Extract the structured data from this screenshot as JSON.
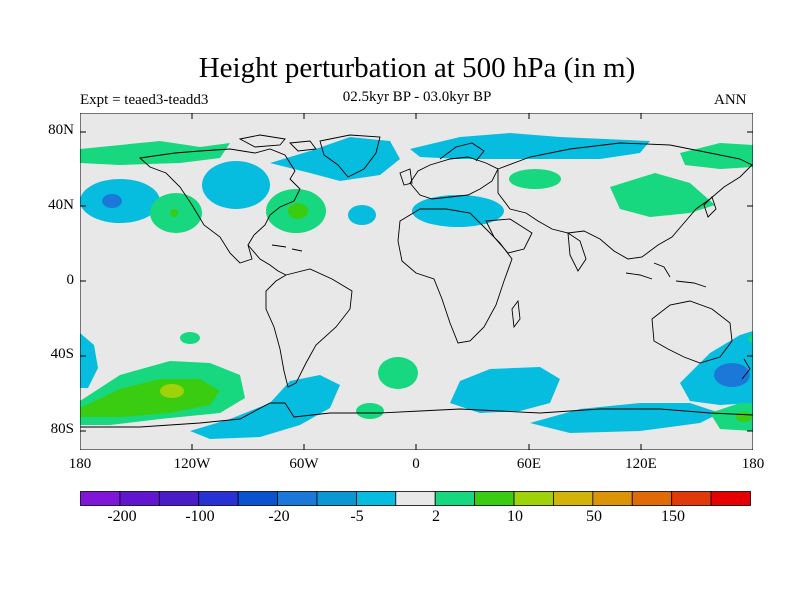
{
  "header": {
    "title": "Height perturbation at 500 hPa (in m)",
    "subtitle": "02.5kyr BP - 03.0kyr BP",
    "left_label": "Expt = teaed3-teadd3",
    "right_label": "ANN"
  },
  "axes": {
    "lat_labels": [
      "80N",
      "40N",
      "0",
      "40S",
      "80S"
    ],
    "lon_labels": [
      "180",
      "120W",
      "60W",
      "0",
      "60E",
      "120E",
      "180"
    ]
  },
  "colorbar": {
    "labels": [
      "-200",
      "-100",
      "-20",
      "-5",
      "2",
      "10",
      "50",
      "150"
    ],
    "colors": [
      "#7f16d9",
      "#6215d0",
      "#4a1bc9",
      "#2731d6",
      "#0a52d0",
      "#1c78d8",
      "#0a98d4",
      "#06bde0",
      "#e8e8e8",
      "#17d77f",
      "#3acc11",
      "#a0d20a",
      "#d1b407",
      "#d99503",
      "#e06b06",
      "#e1390a",
      "#e60000"
    ]
  },
  "colors": {
    "background_land": "#e8e8e8",
    "coastline": "#000000",
    "light_blue": "#06bde0",
    "mid_blue": "#1c78d8",
    "green": "#17d77f",
    "bright_green": "#3acc11",
    "yellow_green": "#a0d20a"
  }
}
